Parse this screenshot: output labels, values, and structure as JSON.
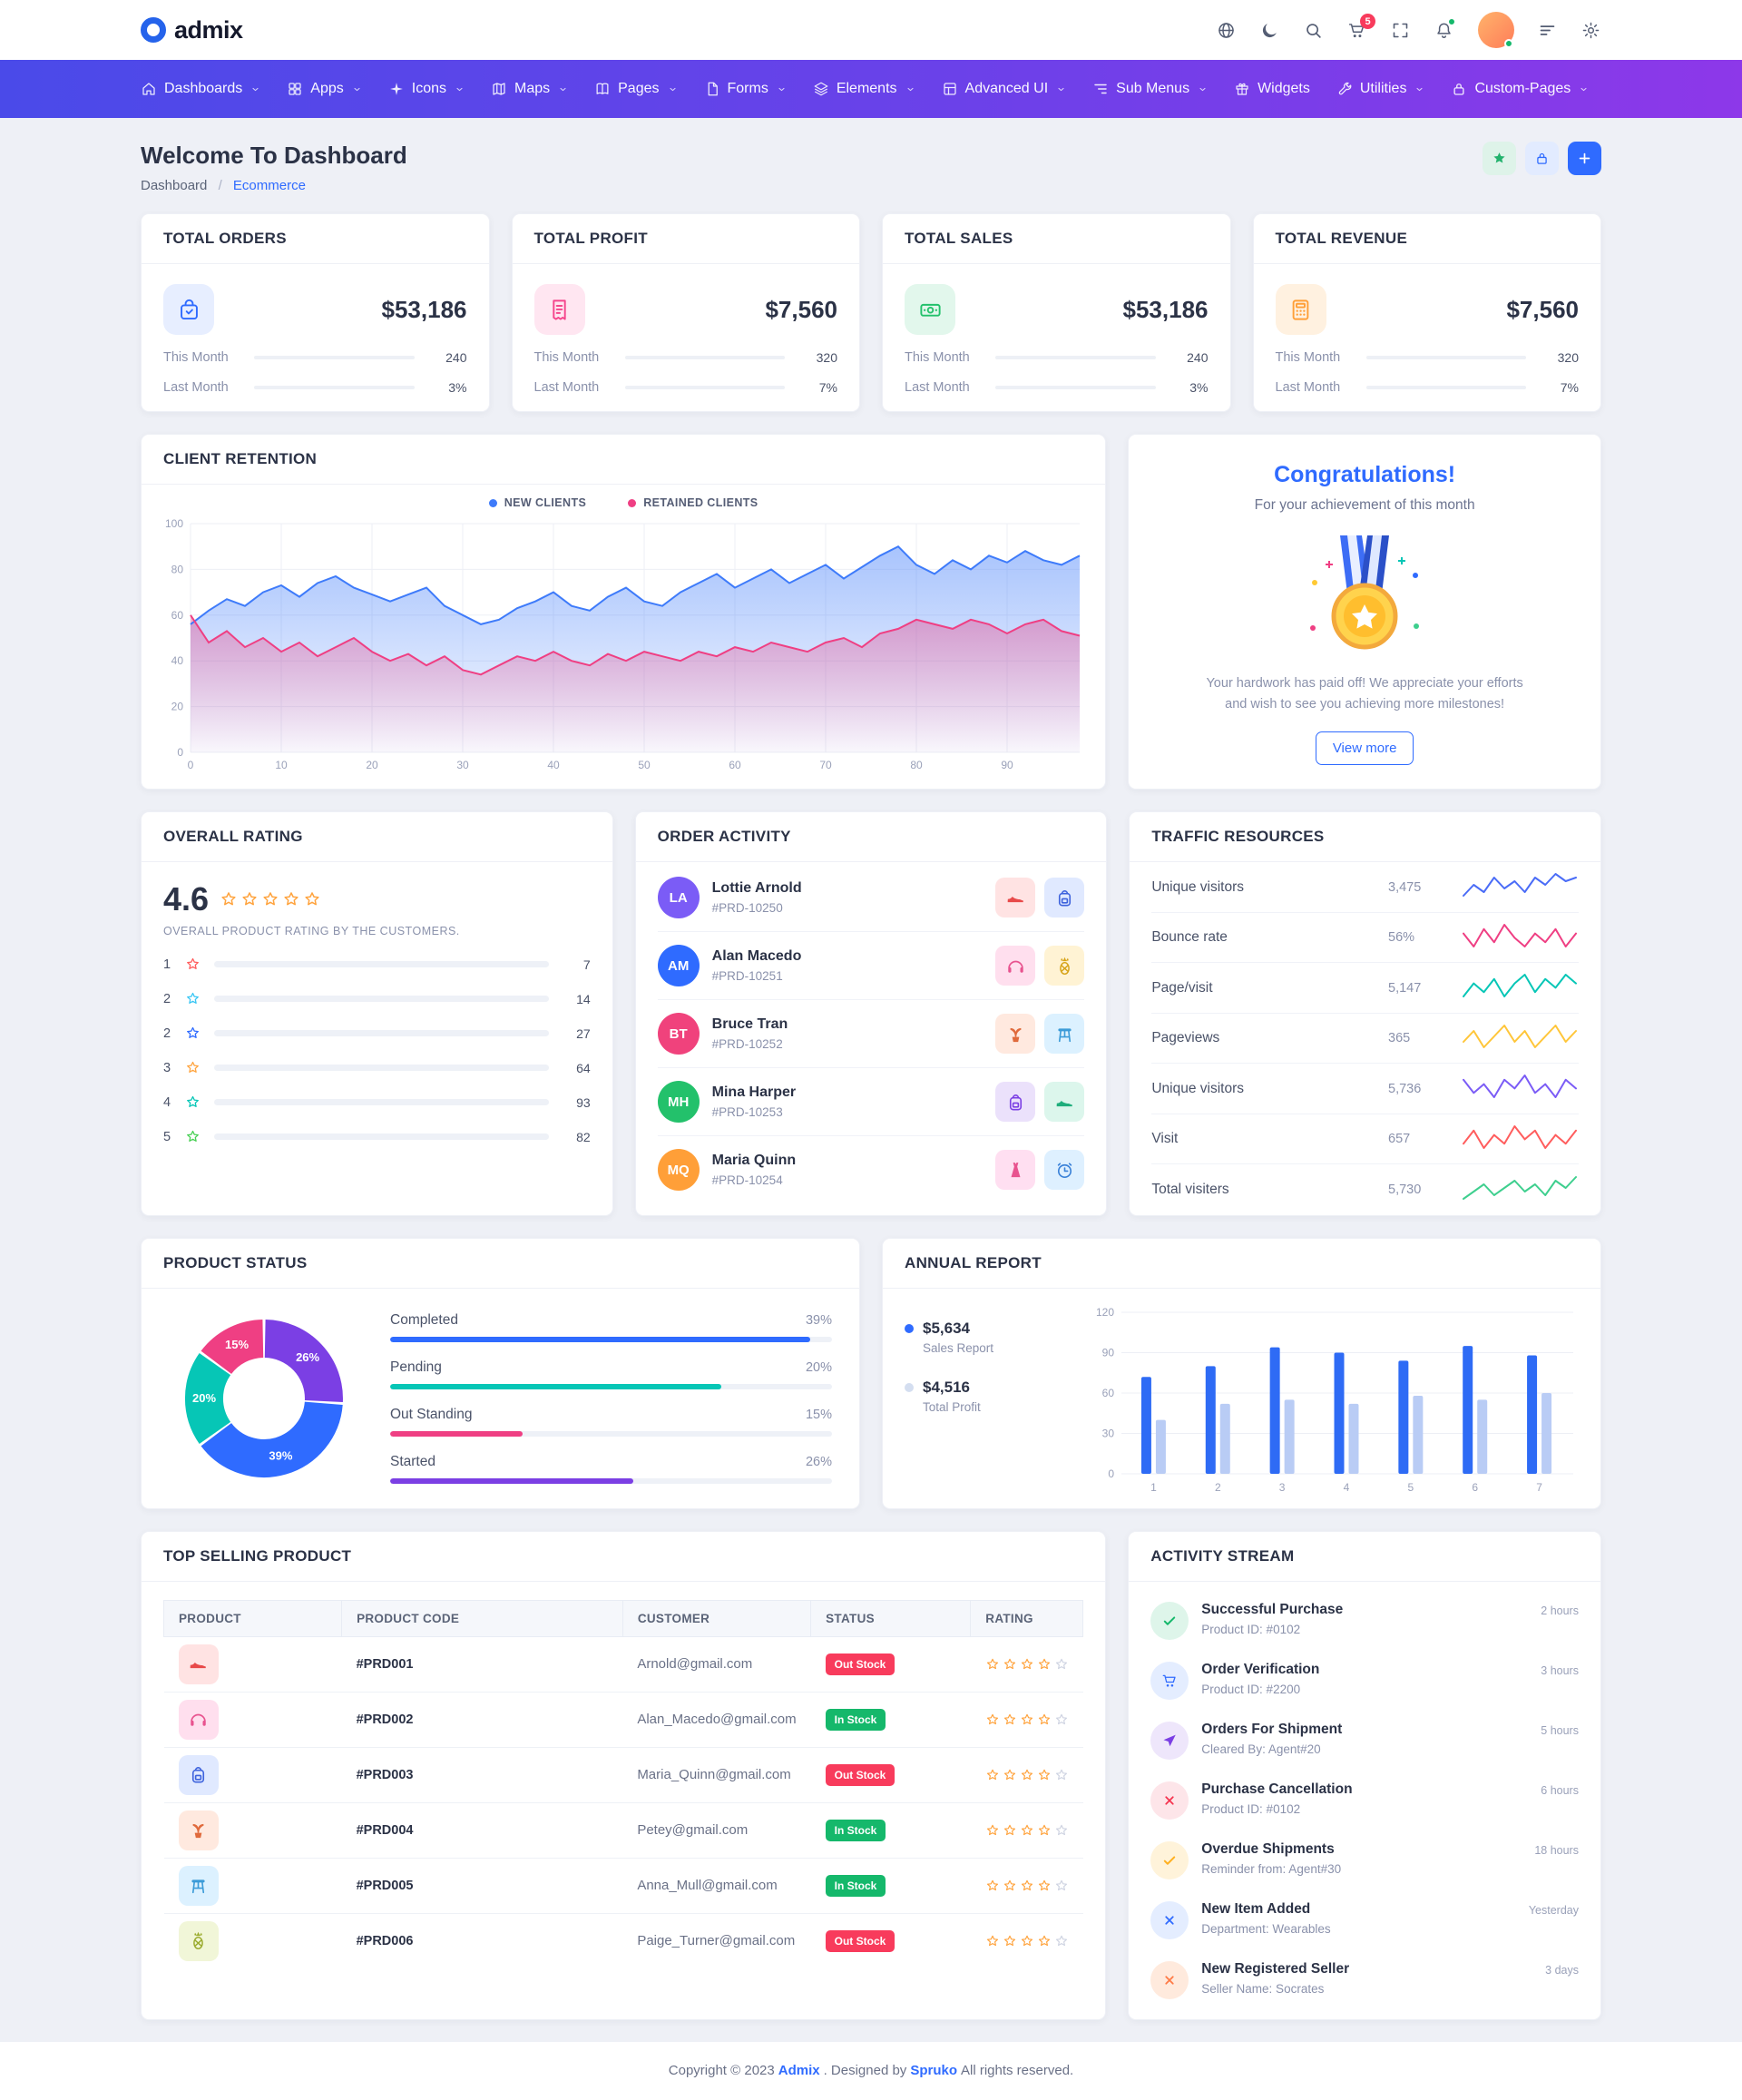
{
  "brand": {
    "name": "admix"
  },
  "topbar": {
    "icons_a": [
      {
        "name": "language-icon",
        "sym": "globe"
      },
      {
        "name": "dark-mode-icon",
        "sym": "moon"
      },
      {
        "name": "search-icon",
        "sym": "search"
      },
      {
        "name": "cart-icon",
        "sym": "cart",
        "badge": "5"
      },
      {
        "name": "fullscreen-icon",
        "sym": "expand"
      },
      {
        "name": "notifications-icon",
        "sym": "bell",
        "dot": true
      }
    ],
    "icons_b": [
      {
        "name": "sidebar-toggle-icon",
        "sym": "menu"
      },
      {
        "name": "settings-icon",
        "sym": "gear"
      }
    ]
  },
  "nav": {
    "items": [
      {
        "name": "nav-item-dashboards",
        "label": "Dashboards",
        "icon": "home-icon",
        "sym": "home",
        "chevron": true
      },
      {
        "name": "nav-item-apps",
        "label": "Apps",
        "icon": "grid-icon",
        "sym": "grid",
        "chevron": true
      },
      {
        "name": "nav-item-icons",
        "label": "Icons",
        "icon": "sparkle-icon",
        "sym": "spark",
        "chevron": true
      },
      {
        "name": "nav-item-maps",
        "label": "Maps",
        "icon": "map-icon",
        "sym": "map",
        "chevron": true
      },
      {
        "name": "nav-item-pages",
        "label": "Pages",
        "icon": "book-icon",
        "sym": "book",
        "chevron": true
      },
      {
        "name": "nav-item-forms",
        "label": "Forms",
        "icon": "file-icon",
        "sym": "file",
        "chevron": true
      },
      {
        "name": "nav-item-elements",
        "label": "Elements",
        "icon": "layers-icon",
        "sym": "layers",
        "chevron": true
      },
      {
        "name": "nav-item-advanced-ui",
        "label": "Advanced UI",
        "icon": "layout-icon",
        "sym": "layout",
        "chevron": true
      },
      {
        "name": "nav-item-sub-menus",
        "label": "Sub Menus",
        "icon": "list-icon",
        "sym": "sublist",
        "chevron": true
      },
      {
        "name": "nav-item-widgets",
        "label": "Widgets",
        "icon": "gift-icon",
        "sym": "gift",
        "chevron": false
      },
      {
        "name": "nav-item-utilities",
        "label": "Utilities",
        "icon": "wrench-icon",
        "sym": "tool",
        "chevron": true
      },
      {
        "name": "nav-item-custom-pages",
        "label": "Custom-Pages",
        "icon": "lock-icon",
        "sym": "lock",
        "chevron": true
      }
    ]
  },
  "page": {
    "title": "Welcome To Dashboard",
    "breadcrumb_root": "Dashboard",
    "breadcrumb_sep": "/",
    "breadcrumb_current": "Ecommerce",
    "actions": [
      {
        "name": "favorite-button",
        "icon": "star-icon",
        "sym": "star",
        "fg": "#23b26d",
        "bg": "#def3e9"
      },
      {
        "name": "lock-button",
        "icon": "lock-icon",
        "sym": "lock",
        "fg": "#2f6bff",
        "bg": "#e2ebff"
      },
      {
        "name": "add-button",
        "icon": "plus-icon",
        "sym": "plus",
        "fg": "#ffffff",
        "bg": "#2f6bff"
      }
    ]
  },
  "stats": [
    {
      "title": "TOTAL ORDERS",
      "value": "$53,186",
      "icon": "orders-icon",
      "sym": "bag",
      "fg": "#2f6bff",
      "bg": "#e7eeff",
      "rows": [
        {
          "label": "This Month",
          "value": "240",
          "pct": 55
        },
        {
          "label": "Last Month",
          "value": "3%",
          "pct": 30
        }
      ]
    },
    {
      "title": "TOTAL PROFIT",
      "value": "$7,560",
      "icon": "profit-icon",
      "sym": "receipt",
      "fg": "#f5458c",
      "bg": "#ffe6f1",
      "rows": [
        {
          "label": "This Month",
          "value": "320",
          "pct": 55
        },
        {
          "label": "Last Month",
          "value": "7%",
          "pct": 30
        }
      ]
    },
    {
      "title": "TOTAL SALES",
      "value": "$53,186",
      "icon": "sales-icon",
      "sym": "cash",
      "fg": "#23c16b",
      "bg": "#e2f7ec",
      "rows": [
        {
          "label": "This Month",
          "value": "240",
          "pct": 55
        },
        {
          "label": "Last Month",
          "value": "3%",
          "pct": 30
        }
      ]
    },
    {
      "title": "TOTAL REVENUE",
      "value": "$7,560",
      "icon": "revenue-icon",
      "sym": "calc",
      "fg": "#ff9f38",
      "bg": "#fff1e0",
      "rows": [
        {
          "label": "This Month",
          "value": "320",
          "pct": 55
        },
        {
          "label": "Last Month",
          "value": "7%",
          "pct": 30
        }
      ]
    }
  ],
  "client_retention": {
    "title": "CLIENT RETENTION",
    "legend": [
      {
        "label": "NEW CLIENTS",
        "color": "#3e7bfa"
      },
      {
        "label": "RETAINED CLIENTS",
        "color": "#ef3f83"
      }
    ],
    "chart": {
      "type": "area",
      "x_ticks": [
        0,
        10,
        20,
        30,
        40,
        50,
        60,
        70,
        80,
        90
      ],
      "y_ticks": [
        0,
        20,
        40,
        60,
        80,
        100
      ],
      "x_max": 98,
      "y_max": 100,
      "series": [
        {
          "name": "NEW CLIENTS",
          "color": "#3e7bfa",
          "values": [
            56,
            62,
            67,
            64,
            70,
            73,
            68,
            74,
            77,
            72,
            69,
            66,
            69,
            72,
            64,
            60,
            56,
            58,
            63,
            66,
            70,
            64,
            62,
            68,
            72,
            66,
            64,
            70,
            74,
            78,
            72,
            76,
            80,
            74,
            78,
            82,
            76,
            81,
            86,
            90,
            82,
            78,
            84,
            80,
            86,
            83,
            88,
            84,
            82,
            86
          ]
        },
        {
          "name": "RETAINED CLIENTS",
          "color": "#ef3f83",
          "values": [
            60,
            48,
            53,
            46,
            50,
            44,
            48,
            42,
            46,
            50,
            44,
            40,
            43,
            38,
            42,
            36,
            34,
            38,
            42,
            40,
            44,
            40,
            38,
            43,
            40,
            44,
            42,
            40,
            44,
            42,
            46,
            44,
            48,
            46,
            44,
            48,
            50,
            46,
            52,
            54,
            58,
            56,
            54,
            58,
            56,
            52,
            56,
            58,
            53,
            51
          ]
        }
      ]
    }
  },
  "congrats": {
    "title": "Congratulations!",
    "subtitle": "For your achievement of this month",
    "message": "Your hardwork has paid off! We appreciate your efforts and wish to see you achieving more milestones!",
    "button": "View more"
  },
  "overall_rating": {
    "title": "OVERALL RATING",
    "score": "4.6",
    "caption": "OVERALL PRODUCT RATING BY THE CUSTOMERS.",
    "rows": [
      {
        "label": "1",
        "value": "7",
        "pct": 21,
        "color": "#ff5d5d"
      },
      {
        "label": "2",
        "value": "14",
        "pct": 25,
        "color": "#38c6f4"
      },
      {
        "label": "2",
        "value": "27",
        "pct": 40,
        "color": "#2f6bff"
      },
      {
        "label": "3",
        "value": "64",
        "pct": 60,
        "color": "#ffa43f"
      },
      {
        "label": "4",
        "value": "93",
        "pct": 71,
        "color": "#06c6b6"
      },
      {
        "label": "5",
        "value": "82",
        "pct": 67,
        "color": "#48cf54"
      }
    ]
  },
  "order_activity": {
    "title": "ORDER ACTIVITY",
    "items": [
      {
        "name": "Lottie Arnold",
        "code": "#PRD-10250",
        "initials": "LA",
        "avatar_bg": "#7b5cf6",
        "thumbs": [
          {
            "icon": "shoe-icon",
            "sym": "shoe",
            "fg": "#e84a4a",
            "bg": "#ffe3e3"
          },
          {
            "icon": "backpack-icon",
            "sym": "backpack",
            "fg": "#3e63dd",
            "bg": "#e0e9ff"
          }
        ]
      },
      {
        "name": "Alan Macedo",
        "code": "#PRD-10251",
        "initials": "AM",
        "avatar_bg": "#2f6bff",
        "thumbs": [
          {
            "icon": "headphones-icon",
            "sym": "hphones",
            "fg": "#e8538f",
            "bg": "#ffdfee"
          },
          {
            "icon": "pineapple-icon",
            "sym": "pineapple",
            "fg": "#d7a318",
            "bg": "#fff3d4"
          }
        ]
      },
      {
        "name": "Bruce Tran",
        "code": "#PRD-10252",
        "initials": "BT",
        "avatar_bg": "#f0427c",
        "thumbs": [
          {
            "icon": "plant-icon",
            "sym": "plant",
            "fg": "#e06a3c",
            "bg": "#ffe9df"
          },
          {
            "icon": "stool-icon",
            "sym": "stool",
            "fg": "#3b9bd8",
            "bg": "#dcf1ff"
          }
        ]
      },
      {
        "name": "Mina Harper",
        "code": "#PRD-10253",
        "initials": "MH",
        "avatar_bg": "#23c16b",
        "thumbs": [
          {
            "icon": "backpack-icon",
            "sym": "backpack",
            "fg": "#7b3fe4",
            "bg": "#ebe1fb"
          },
          {
            "icon": "shoe-icon",
            "sym": "shoe",
            "fg": "#1fae7c",
            "bg": "#dcf6ec"
          }
        ]
      },
      {
        "name": "Maria Quinn",
        "code": "#PRD-10254",
        "initials": "MQ",
        "avatar_bg": "#ff9f38",
        "thumbs": [
          {
            "icon": "dress-icon",
            "sym": "dress",
            "fg": "#e8538f",
            "bg": "#ffdff1"
          },
          {
            "icon": "clock-icon",
            "sym": "clock",
            "fg": "#3b82d8",
            "bg": "#def0ff"
          }
        ]
      }
    ]
  },
  "traffic": {
    "title": "TRAFFIC RESOURCES",
    "rows": [
      {
        "label": "Unique visitors",
        "value": "3,475",
        "color": "#4a6cf7",
        "spark": [
          4,
          7,
          5,
          9,
          6,
          8,
          5,
          9,
          7,
          10,
          8,
          9
        ]
      },
      {
        "label": "Bounce rate",
        "value": "56%",
        "color": "#ef3f83",
        "spark": [
          8,
          5,
          9,
          6,
          10,
          7,
          5,
          8,
          6,
          9,
          5,
          8
        ]
      },
      {
        "label": "Page/visit",
        "value": "5,147",
        "color": "#06c6b6",
        "spark": [
          5,
          8,
          6,
          9,
          5,
          8,
          10,
          6,
          9,
          7,
          10,
          8
        ]
      },
      {
        "label": "Pageviews",
        "value": "365",
        "color": "#ffc63a",
        "spark": [
          7,
          9,
          6,
          8,
          10,
          7,
          9,
          6,
          8,
          10,
          7,
          9
        ]
      },
      {
        "label": "Unique visitors",
        "value": "5,736",
        "color": "#7b5cf6",
        "spark": [
          9,
          6,
          8,
          5,
          9,
          7,
          10,
          6,
          8,
          5,
          9,
          7
        ]
      },
      {
        "label": "Visit",
        "value": "657",
        "color": "#ff5d5d",
        "spark": [
          6,
          9,
          5,
          8,
          6,
          10,
          7,
          9,
          5,
          8,
          6,
          9
        ]
      },
      {
        "label": "Total visiters",
        "value": "5,730",
        "color": "#3ecf8e",
        "spark": [
          5,
          7,
          9,
          6,
          8,
          10,
          7,
          9,
          6,
          10,
          8,
          11
        ]
      }
    ]
  },
  "product_status": {
    "title": "PRODUCT STATUS",
    "chart_donut": {
      "type": "pie",
      "segments": [
        {
          "label": "Started",
          "pct": 26,
          "color": "#7b3fe4"
        },
        {
          "label": "Completed",
          "pct": 39,
          "color": "#2f6bff"
        },
        {
          "label": "Pending",
          "pct": 20,
          "color": "#06c6b6"
        },
        {
          "label": "Out Standing",
          "pct": 15,
          "color": "#ef3f83"
        }
      ]
    },
    "legend": [
      {
        "label": "Completed",
        "value": "39%",
        "color": "#2f6bff",
        "bar": 95
      },
      {
        "label": "Pending",
        "value": "20%",
        "color": "#06c6b6",
        "bar": 75
      },
      {
        "label": "Out Standing",
        "value": "15%",
        "color": "#ef3f83",
        "bar": 30
      },
      {
        "label": "Started",
        "value": "26%",
        "color": "#7b3fe4",
        "bar": 55
      }
    ]
  },
  "annual_report": {
    "title": "ANNUAL REPORT",
    "legend": [
      {
        "value": "$5,634",
        "label": "Sales Report",
        "color": "#2f6bff"
      },
      {
        "value": "$4,516",
        "label": "Total Profit",
        "color": "#d4def0"
      }
    ],
    "chart": {
      "type": "bar",
      "categories": [
        "1",
        "2",
        "3",
        "4",
        "5",
        "6",
        "7"
      ],
      "y_ticks": [
        0,
        30,
        60,
        90,
        120
      ],
      "y_max": 120,
      "series": [
        {
          "name": "Sales Report",
          "color": "#2e6bf5",
          "values": [
            72,
            80,
            94,
            90,
            84,
            95,
            88
          ]
        },
        {
          "name": "Total Profit",
          "color": "#b9ccf5",
          "values": [
            40,
            52,
            55,
            52,
            58,
            55,
            60
          ]
        }
      ]
    }
  },
  "top_selling": {
    "title": "TOP SELLING PRODUCT",
    "columns": [
      "PRODUCT",
      "PRODUCT CODE",
      "CUSTOMER",
      "STATUS",
      "RATING"
    ],
    "rows": [
      {
        "icon": "shoe-icon",
        "sym": "shoe",
        "fg": "#e84a4a",
        "bg": "#ffe3e3",
        "code": "#PRD001",
        "customer": "Arnold@gmail.com",
        "status": "Out Stock",
        "status_bg": "#f83b5c",
        "stars": 4
      },
      {
        "icon": "headphones-icon",
        "sym": "hphones",
        "fg": "#e8538f",
        "bg": "#ffdfee",
        "code": "#PRD002",
        "customer": "Alan_Macedo@gmail.com",
        "status": "In Stock",
        "status_bg": "#15b86b",
        "stars": 4
      },
      {
        "icon": "backpack-icon",
        "sym": "backpack",
        "fg": "#3e63dd",
        "bg": "#e0e9ff",
        "code": "#PRD003",
        "customer": "Maria_Quinn@gmail.com",
        "status": "Out Stock",
        "status_bg": "#f83b5c",
        "stars": 4
      },
      {
        "icon": "plant-icon",
        "sym": "plant",
        "fg": "#e06a3c",
        "bg": "#ffe9df",
        "code": "#PRD004",
        "customer": "Petey@gmail.com",
        "status": "In Stock",
        "status_bg": "#15b86b",
        "stars": 4
      },
      {
        "icon": "stool-icon",
        "sym": "stool",
        "fg": "#3b9bd8",
        "bg": "#dcf1ff",
        "code": "#PRD005",
        "customer": "Anna_Mull@gmail.com",
        "status": "In Stock",
        "status_bg": "#15b86b",
        "stars": 4
      },
      {
        "icon": "pineapple-icon",
        "sym": "pineapple",
        "fg": "#9aab2e",
        "bg": "#f1f6d8",
        "code": "#PRD006",
        "customer": "Paige_Turner@gmail.com",
        "status": "Out Stock",
        "status_bg": "#f83b5c",
        "stars": 4
      }
    ]
  },
  "activity_stream": {
    "title": "ACTIVITY STREAM",
    "items": [
      {
        "title": "Successful Purchase",
        "sub": "Product ID: #0102",
        "time": "2 hours",
        "icon": "check-icon",
        "sym": "check",
        "fg": "#15b86b",
        "bg": "#def5ea"
      },
      {
        "title": "Order Verification",
        "sub": "Product ID: #2200",
        "time": "3 hours",
        "icon": "cart-icon",
        "sym": "cart",
        "fg": "#2f6bff",
        "bg": "#e4edff"
      },
      {
        "title": "Orders For Shipment",
        "sub": "Cleared By: Agent#20",
        "time": "5 hours",
        "icon": "send-icon",
        "sym": "send",
        "fg": "#7b3fe4",
        "bg": "#eee6fb"
      },
      {
        "title": "Purchase Cancellation",
        "sub": "Product ID: #0102",
        "time": "6 hours",
        "icon": "cross-icon",
        "sym": "cross",
        "fg": "#f5334f",
        "bg": "#fde5e9"
      },
      {
        "title": "Overdue Shipments",
        "sub": "Reminder from: Agent#30",
        "time": "18 hours",
        "icon": "check-icon",
        "sym": "check",
        "fg": "#ffb020",
        "bg": "#fff3da"
      },
      {
        "title": "New Item Added",
        "sub": "Department: Wearables",
        "time": "Yesterday",
        "icon": "cross-icon",
        "sym": "cross",
        "fg": "#2f6bff",
        "bg": "#e4edff"
      },
      {
        "title": "New Registered Seller",
        "sub": "Seller Name: Socrates",
        "time": "3 days",
        "icon": "cross-icon",
        "sym": "cross",
        "fg": "#ff7a45",
        "bg": "#ffeadd"
      }
    ]
  },
  "footer": {
    "prefix": "Copyright © 2023 ",
    "brand": "Admix",
    "middle": ". Designed by ",
    "designer": "Spruko",
    "suffix": " All rights reserved."
  }
}
